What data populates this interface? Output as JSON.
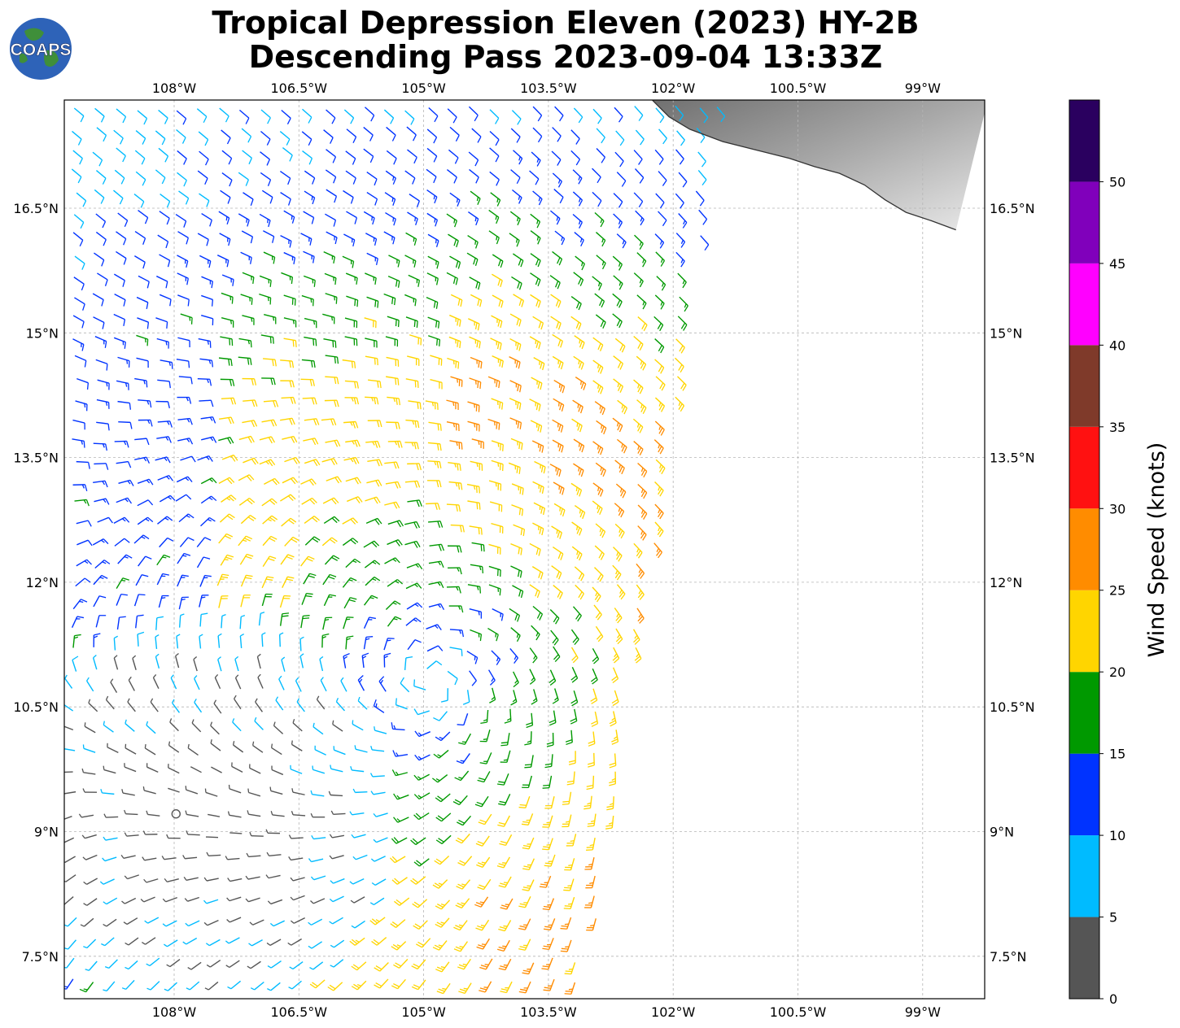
{
  "header": {
    "title_line1": "Tropical Depression Eleven (2023) HY-2B",
    "title_line2": "Descending Pass 2023-09-04 13:33Z",
    "logo_text": "COAPS"
  },
  "map": {
    "lon_range": [
      -109.0,
      -101.6
    ],
    "lat_range": [
      7.0,
      17.8
    ],
    "lon_ticks": [
      {
        "value": -108.0,
        "label": "108°W"
      },
      {
        "value": -106.5,
        "label": "106.5°W"
      },
      {
        "value": -105.0,
        "label": "105°W"
      },
      {
        "value": -103.5,
        "label": "103.5°W"
      },
      {
        "value": -102.0,
        "label": "102°W"
      },
      {
        "value": -100.5,
        "label": "100.5°W"
      },
      {
        "value": -99.0,
        "label": "99°W"
      }
    ],
    "lat_ticks": [
      {
        "value": 16.5,
        "label": "16.5°N"
      },
      {
        "value": 15.0,
        "label": "15°N"
      },
      {
        "value": 13.5,
        "label": "13.5°N"
      },
      {
        "value": 12.0,
        "label": "12°N"
      },
      {
        "value": 10.5,
        "label": "10.5°N"
      },
      {
        "value": 9.0,
        "label": "9°N"
      },
      {
        "value": 7.5,
        "label": "7.5°N"
      }
    ],
    "grid": true,
    "storm_center": {
      "lon": -104.9,
      "lat": 10.8
    },
    "coastline": [
      [
        -102.25,
        17.8
      ],
      [
        -102.05,
        17.6
      ],
      [
        -101.8,
        17.45
      ],
      [
        -101.4,
        17.3
      ],
      [
        -101.0,
        17.2
      ],
      [
        -100.6,
        17.1
      ],
      [
        -100.3,
        17.0
      ],
      [
        -100.0,
        16.92
      ],
      [
        -99.7,
        16.78
      ],
      [
        -99.45,
        16.6
      ],
      [
        -99.2,
        16.45
      ],
      [
        -98.9,
        16.35
      ],
      [
        -98.6,
        16.24
      ]
    ]
  },
  "colorbar": {
    "title": "Wind Speed (knots)",
    "ticks": [
      "0",
      "5",
      "10",
      "15",
      "20",
      "25",
      "30",
      "35",
      "40",
      "45",
      "50"
    ],
    "bins": [
      {
        "min": 0,
        "max": 5,
        "color": "#555555"
      },
      {
        "min": 5,
        "max": 10,
        "color": "#00bbff"
      },
      {
        "min": 10,
        "max": 15,
        "color": "#0033ff"
      },
      {
        "min": 15,
        "max": 20,
        "color": "#009900"
      },
      {
        "min": 20,
        "max": 25,
        "color": "#ffd500"
      },
      {
        "min": 25,
        "max": 30,
        "color": "#ff8c00"
      },
      {
        "min": 30,
        "max": 35,
        "color": "#ff1111"
      },
      {
        "min": 35,
        "max": 40,
        "color": "#7f3a2a"
      },
      {
        "min": 40,
        "max": 45,
        "color": "#ff00ff"
      },
      {
        "min": 45,
        "max": 50,
        "color": "#8000bb"
      },
      {
        "min": 50,
        "max": 55,
        "color": "#2a005f"
      }
    ]
  }
}
